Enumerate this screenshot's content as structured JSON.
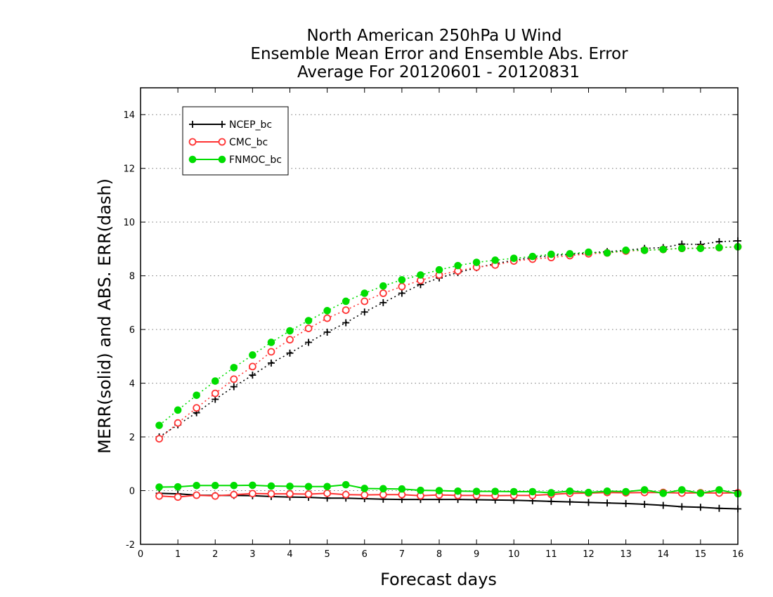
{
  "chart_data": {
    "type": "line",
    "title": [
      "North American 250hPa U Wind",
      "Ensemble Mean Error and Ensemble Abs. Error",
      "Average For 20120601 - 20120831"
    ],
    "xlabel": "Forecast days",
    "ylabel": "MERR(solid) and ABS. ERR(dash)",
    "xlim": [
      0,
      16
    ],
    "ylim": [
      -2,
      15
    ],
    "xticks": [
      0,
      1,
      2,
      3,
      4,
      5,
      6,
      7,
      8,
      9,
      10,
      11,
      12,
      13,
      14,
      15,
      16
    ],
    "xtick_labels": [
      "0",
      "1",
      "2",
      "3",
      "4",
      "5",
      "6",
      "7",
      "8",
      "9",
      "10",
      "11",
      "12",
      "13",
      "14",
      "15",
      "16"
    ],
    "yticks": [
      -2,
      0,
      2,
      4,
      6,
      8,
      10,
      12,
      14
    ],
    "ytick_labels": [
      "-2",
      "0",
      "2",
      "4",
      "6",
      "8",
      "10",
      "12",
      "14"
    ],
    "grid": "horizontal dotted",
    "legend_position": "top-left",
    "x": [
      0.5,
      1.0,
      1.5,
      2.0,
      2.5,
      3.0,
      3.5,
      4.0,
      4.5,
      5.0,
      5.5,
      6.0,
      6.5,
      7.0,
      7.5,
      8.0,
      8.5,
      9.0,
      9.5,
      10.0,
      10.5,
      11.0,
      11.5,
      12.0,
      12.5,
      13.0,
      13.5,
      14.0,
      14.5,
      15.0,
      15.5,
      16.0
    ],
    "series": [
      {
        "name": "NCEP_bc",
        "color": "#000000",
        "marker": "plus",
        "mean_error_solid": [
          -0.1,
          -0.12,
          -0.17,
          -0.18,
          -0.18,
          -0.19,
          -0.22,
          -0.24,
          -0.25,
          -0.28,
          -0.28,
          -0.3,
          -0.32,
          -0.33,
          -0.33,
          -0.33,
          -0.33,
          -0.34,
          -0.35,
          -0.36,
          -0.38,
          -0.4,
          -0.42,
          -0.44,
          -0.46,
          -0.48,
          -0.51,
          -0.55,
          -0.6,
          -0.62,
          -0.66,
          -0.68
        ],
        "abs_error_dash": [
          2.0,
          2.45,
          2.9,
          3.4,
          3.87,
          4.3,
          4.75,
          5.12,
          5.52,
          5.9,
          6.25,
          6.65,
          7.0,
          7.35,
          7.67,
          7.92,
          8.12,
          8.3,
          8.45,
          8.58,
          8.68,
          8.75,
          8.8,
          8.85,
          8.9,
          8.95,
          9.02,
          9.05,
          9.18,
          9.17,
          9.27,
          9.3
        ]
      },
      {
        "name": "CMC_bc",
        "color": "#ff3333",
        "marker": "open-circle",
        "mean_error_solid": [
          -0.2,
          -0.24,
          -0.17,
          -0.2,
          -0.15,
          -0.11,
          -0.12,
          -0.12,
          -0.13,
          -0.1,
          -0.15,
          -0.16,
          -0.15,
          -0.15,
          -0.19,
          -0.16,
          -0.18,
          -0.18,
          -0.19,
          -0.18,
          -0.18,
          -0.14,
          -0.1,
          -0.09,
          -0.07,
          -0.08,
          -0.07,
          -0.07,
          -0.09,
          -0.08,
          -0.09,
          -0.08
        ],
        "abs_error_dash": [
          1.93,
          2.52,
          3.08,
          3.62,
          4.15,
          4.62,
          5.17,
          5.62,
          6.04,
          6.42,
          6.72,
          7.05,
          7.35,
          7.6,
          7.83,
          8.03,
          8.18,
          8.32,
          8.4,
          8.55,
          8.62,
          8.68,
          8.75,
          8.82,
          8.85,
          8.92,
          8.95,
          8.98,
          9.02,
          9.03,
          9.05,
          9.08
        ]
      },
      {
        "name": "FNMOC_bc",
        "color": "#00dd00",
        "marker": "filled-circle",
        "mean_error_solid": [
          0.13,
          0.14,
          0.19,
          0.19,
          0.19,
          0.2,
          0.17,
          0.16,
          0.15,
          0.15,
          0.22,
          0.08,
          0.07,
          0.06,
          0.01,
          0.0,
          -0.02,
          -0.03,
          -0.03,
          -0.04,
          -0.04,
          -0.08,
          -0.02,
          -0.07,
          -0.02,
          -0.04,
          0.03,
          -0.1,
          0.03,
          -0.1,
          0.03,
          -0.12
        ],
        "abs_error_dash": [
          2.43,
          3.0,
          3.55,
          4.08,
          4.58,
          5.05,
          5.52,
          5.95,
          6.33,
          6.7,
          7.05,
          7.35,
          7.62,
          7.85,
          8.03,
          8.22,
          8.38,
          8.5,
          8.58,
          8.65,
          8.72,
          8.8,
          8.82,
          8.88,
          8.85,
          8.95,
          8.95,
          8.98,
          9.02,
          9.02,
          9.05,
          9.08
        ]
      }
    ]
  }
}
